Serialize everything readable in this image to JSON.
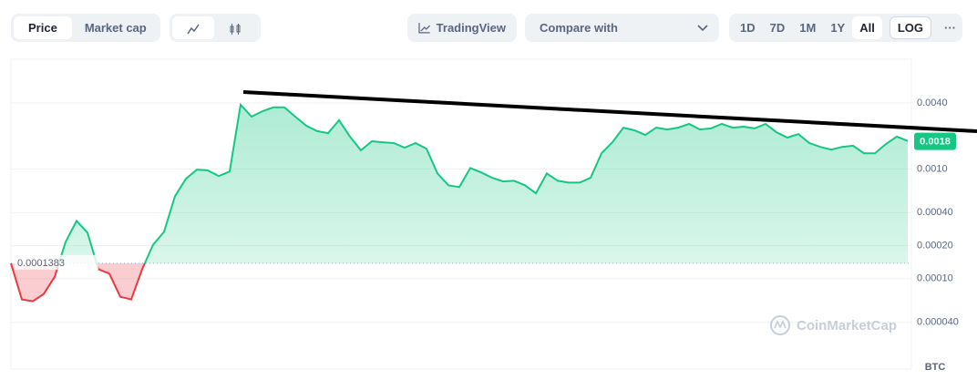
{
  "toolbar": {
    "tabs": [
      "Price",
      "Market cap"
    ],
    "tradingview": "TradingView",
    "compare": "Compare with",
    "ranges": [
      "1D",
      "7D",
      "1M",
      "1Y",
      "All"
    ],
    "log": "LOG",
    "more": "···"
  },
  "watermark": "CoinMarketCap",
  "chart_data": {
    "type": "line",
    "log_scale": true,
    "grid": true,
    "y_axis_label": "BTC",
    "baseline": 0.0001383,
    "current_price": 0.0018,
    "ylim": [
      1.5e-05,
      0.01
    ],
    "yticks": [
      {
        "value": 0.004,
        "label": "0.0040"
      },
      {
        "value": 0.001,
        "label": "0.0010"
      },
      {
        "value": 0.0004,
        "label": "0.00040"
      },
      {
        "value": 0.0002,
        "label": "0.00020"
      },
      {
        "value": 0.0001,
        "label": "0.00010"
      },
      {
        "value": 4e-05,
        "label": "0.000040"
      }
    ],
    "up_color": "#16c784",
    "down_color": "#ea3943",
    "values": [
      0.000138,
      6.46e-05,
      6.22e-05,
      7.25e-05,
      0.000104,
      0.000216,
      0.000336,
      0.000262,
      0.000122,
      0.000111,
      6.84e-05,
      6.46e-05,
      0.000122,
      0.000204,
      0.000267,
      0.000565,
      0.000813,
      0.000986,
      0.00097,
      0.000862,
      0.000948,
      0.00385,
      0.003,
      0.00336,
      0.00364,
      0.00364,
      0.003,
      0.00248,
      0.00221,
      0.00212,
      0.00278,
      0.00197,
      0.00148,
      0.00179,
      0.00175,
      0.00172,
      0.00156,
      0.00172,
      0.00153,
      0.00091,
      0.00071,
      0.000684,
      0.00102,
      0.00093,
      0.00083,
      0.00077,
      0.00078,
      0.00071,
      0.0006,
      0.00091,
      0.00078,
      0.00075,
      0.00075,
      0.00083,
      0.00139,
      0.00175,
      0.00238,
      0.00225,
      0.00204,
      0.00238,
      0.00229,
      0.00238,
      0.00257,
      0.00229,
      0.00234,
      0.00257,
      0.00238,
      0.00243,
      0.00234,
      0.00257,
      0.00216,
      0.00193,
      0.00208,
      0.00172,
      0.00159,
      0.0015,
      0.00159,
      0.00163,
      0.00139,
      0.00139,
      0.00169,
      0.00197,
      0.0018
    ]
  }
}
